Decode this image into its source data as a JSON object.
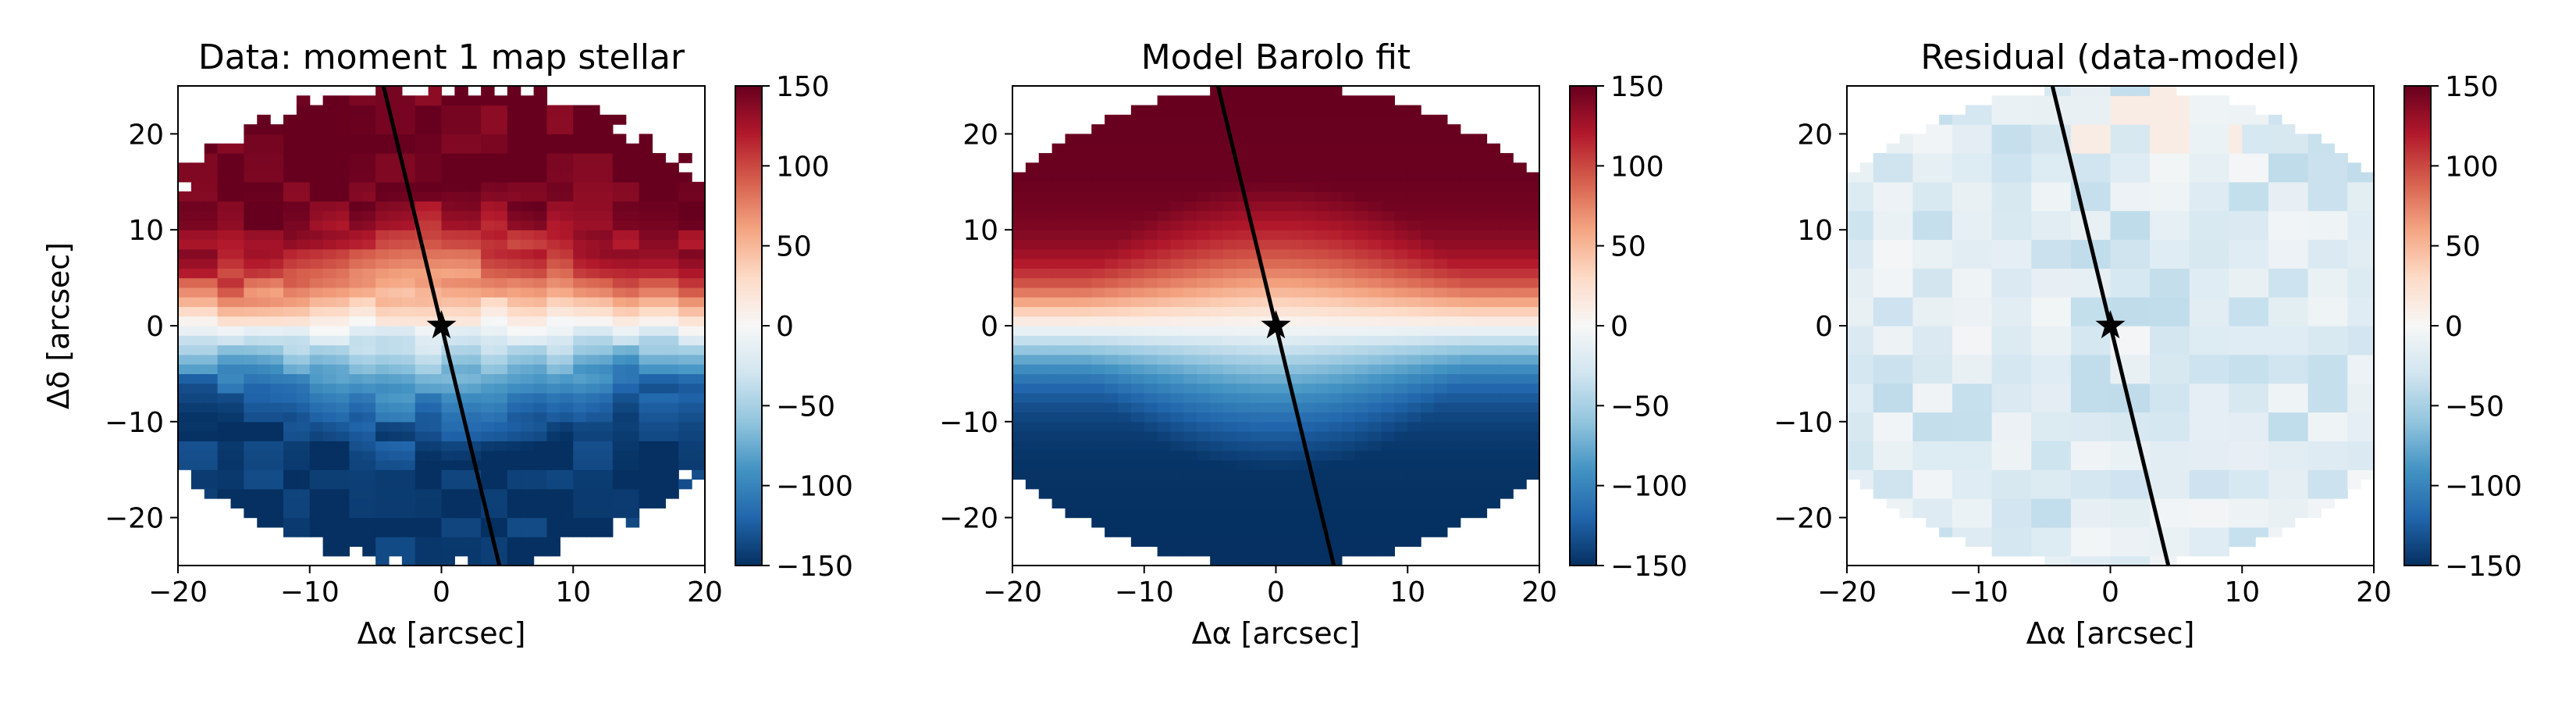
{
  "figure": {
    "colormap": "RdBu_r",
    "colors": {
      "deep_blue": "#053061",
      "mid_blue": "#4393c3",
      "white": "#f7f7f7",
      "mid_red": "#d6604d",
      "deep_red": "#67001f"
    }
  },
  "chart_data": [
    {
      "type": "heatmap",
      "title": "Data: moment 1 map stellar",
      "xlabel": "Δα [arcsec]",
      "ylabel": "Δδ [arcsec]",
      "xlim": [
        -20,
        20
      ],
      "ylim": [
        -25,
        25
      ],
      "xticks": [
        -20,
        -10,
        0,
        10,
        20
      ],
      "xtick_labels": [
        "−20",
        "−10",
        "0",
        "10",
        "20"
      ],
      "yticks": [
        -20,
        -10,
        0,
        10,
        20
      ],
      "ytick_labels": [
        "−20",
        "−10",
        "0",
        "10",
        "20"
      ],
      "colorbar": {
        "vmin": -150,
        "vmax": 150,
        "ticks": [
          150,
          100,
          50,
          0,
          -50,
          -100,
          -150
        ],
        "tick_labels": [
          "150",
          "100",
          "50",
          "0",
          "−50",
          "−100",
          "−150"
        ]
      },
      "field": "observed",
      "velocity_amplitude": 150,
      "extent_radius_arcsec": 25,
      "center_marker": {
        "x": 0,
        "y": 0,
        "symbol": "star"
      },
      "position_angle_line": {
        "x1": -4.4,
        "y1": 25,
        "x2": 4.4,
        "y2": -25
      }
    },
    {
      "type": "heatmap",
      "title": "Model Barolo fit",
      "xlabel": "Δα [arcsec]",
      "ylabel": "",
      "xlim": [
        -20,
        20
      ],
      "ylim": [
        -25,
        25
      ],
      "xticks": [
        -20,
        -10,
        0,
        10,
        20
      ],
      "xtick_labels": [
        "−20",
        "−10",
        "0",
        "10",
        "20"
      ],
      "yticks": [
        -20,
        -10,
        0,
        10,
        20
      ],
      "ytick_labels": [
        "−20",
        "−10",
        "0",
        "10",
        "20"
      ],
      "colorbar": {
        "vmin": -150,
        "vmax": 150,
        "ticks": [
          150,
          100,
          50,
          0,
          -50,
          -100,
          -150
        ],
        "tick_labels": [
          "150",
          "100",
          "50",
          "0",
          "−50",
          "−100",
          "−150"
        ]
      },
      "field": "model",
      "velocity_amplitude": 150,
      "extent_radius_arcsec": 25,
      "center_marker": {
        "x": 0,
        "y": 0,
        "symbol": "star"
      },
      "position_angle_line": {
        "x1": -4.4,
        "y1": 25,
        "x2": 4.4,
        "y2": -25
      }
    },
    {
      "type": "heatmap",
      "title": "Residual (data-model)",
      "xlabel": "Δα [arcsec]",
      "ylabel": "",
      "xlim": [
        -20,
        20
      ],
      "ylim": [
        -25,
        25
      ],
      "xticks": [
        -20,
        -10,
        0,
        10,
        20
      ],
      "xtick_labels": [
        "−20",
        "−10",
        "0",
        "10",
        "20"
      ],
      "yticks": [
        -20,
        -10,
        0,
        10,
        20
      ],
      "ytick_labels": [
        "−20",
        "−10",
        "0",
        "10",
        "20"
      ],
      "colorbar": {
        "vmin": -150,
        "vmax": 150,
        "ticks": [
          150,
          100,
          50,
          0,
          -50,
          -100,
          -150
        ],
        "tick_labels": [
          "150",
          "100",
          "50",
          "0",
          "−50",
          "−100",
          "−150"
        ]
      },
      "field": "residual",
      "velocity_amplitude": 30,
      "extent_radius_arcsec": 25,
      "center_marker": {
        "x": 0,
        "y": 0,
        "symbol": "star"
      },
      "position_angle_line": {
        "x1": -4.4,
        "y1": 25,
        "x2": 4.4,
        "y2": -25
      }
    }
  ]
}
